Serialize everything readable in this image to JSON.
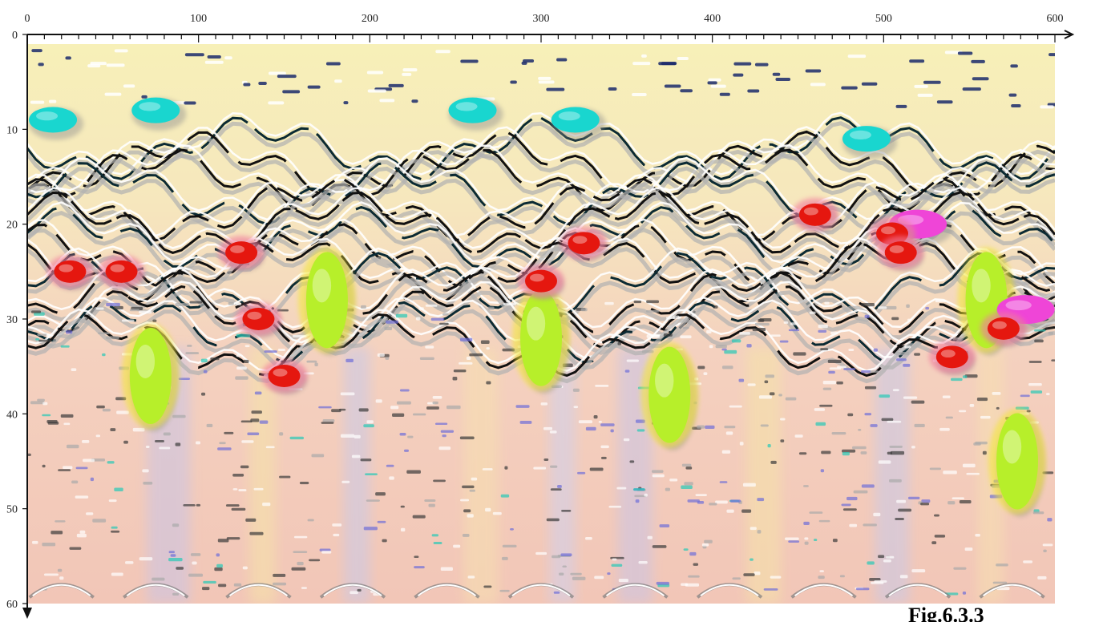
{
  "chart_data": {
    "type": "heatmap",
    "title": "",
    "xlabel": "",
    "ylabel": "",
    "xlim": [
      0,
      600
    ],
    "ylim": [
      0,
      60
    ],
    "y_inverted": true,
    "x_ticks": [
      "0",
      "100",
      "200",
      "300",
      "400",
      "500",
      "600"
    ],
    "y_ticks": [
      "0",
      "10",
      "20",
      "30",
      "40",
      "50",
      "60"
    ],
    "x_minor_step": 10,
    "grid": false,
    "legend": "none",
    "colors": {
      "background_top": "#f7f0b8",
      "background_bottom": "#f3c7b8",
      "cyan": "#19d6cf",
      "red": "#e5170f",
      "green": "#b7ef2a",
      "magenta": "#ef45d7",
      "blue": "#5a5ad0",
      "shadow": "#8f8f8f"
    },
    "anomalies": [
      {
        "kind": "red",
        "x": 25,
        "y": 25
      },
      {
        "kind": "red",
        "x": 55,
        "y": 25
      },
      {
        "kind": "red",
        "x": 125,
        "y": 23
      },
      {
        "kind": "red",
        "x": 135,
        "y": 30
      },
      {
        "kind": "red",
        "x": 150,
        "y": 36
      },
      {
        "kind": "red",
        "x": 300,
        "y": 26
      },
      {
        "kind": "red",
        "x": 325,
        "y": 22
      },
      {
        "kind": "red",
        "x": 460,
        "y": 19
      },
      {
        "kind": "red",
        "x": 505,
        "y": 21
      },
      {
        "kind": "red",
        "x": 510,
        "y": 23
      },
      {
        "kind": "red",
        "x": 540,
        "y": 34
      },
      {
        "kind": "red",
        "x": 570,
        "y": 31
      },
      {
        "kind": "magenta",
        "x": 520,
        "y": 20
      },
      {
        "kind": "magenta",
        "x": 583,
        "y": 29
      },
      {
        "kind": "green",
        "x": 72,
        "y": 36
      },
      {
        "kind": "green",
        "x": 175,
        "y": 28
      },
      {
        "kind": "green",
        "x": 300,
        "y": 32
      },
      {
        "kind": "green",
        "x": 375,
        "y": 38
      },
      {
        "kind": "green",
        "x": 560,
        "y": 28
      },
      {
        "kind": "green",
        "x": 578,
        "y": 45
      },
      {
        "kind": "cyan",
        "x": 15,
        "y": 9
      },
      {
        "kind": "cyan",
        "x": 75,
        "y": 8
      },
      {
        "kind": "cyan",
        "x": 260,
        "y": 8
      },
      {
        "kind": "cyan",
        "x": 320,
        "y": 9
      },
      {
        "kind": "cyan",
        "x": 490,
        "y": 11
      }
    ]
  },
  "caption": "Fig.6.3.3"
}
